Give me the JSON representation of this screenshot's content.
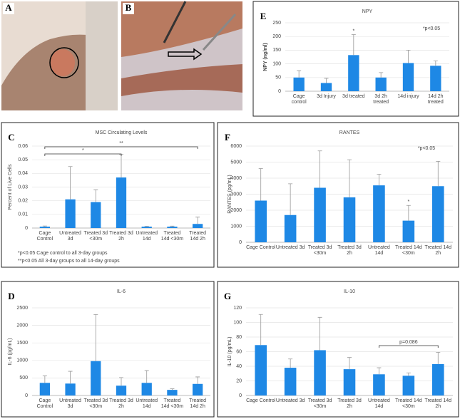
{
  "images": [
    {
      "panel": "A"
    },
    {
      "panel": "B"
    }
  ],
  "chart_data": [
    {
      "type": "bar",
      "panel": "E",
      "title": "NPY",
      "y_label": "NPY (ng/ml)",
      "color": "#1e88e5",
      "categories": [
        "Cage control",
        "3d Injury",
        "3d treated",
        "3d 2h treated",
        "14d injury",
        "14d 2h treated"
      ],
      "values": [
        50,
        30,
        132,
        50,
        103,
        93
      ],
      "errors": [
        25,
        17,
        75,
        18,
        47,
        18
      ],
      "ylim": [
        0,
        250
      ],
      "yticks": [
        0,
        50,
        100,
        150,
        200,
        250
      ],
      "note": "*p<0.05",
      "stars": [
        {
          "category": "3d treated",
          "text": "*"
        }
      ],
      "brackets": []
    },
    {
      "type": "bar",
      "panel": "C",
      "title": "MSC Circulating Levels",
      "y_label": "Percent of Live Cells",
      "color": "#1e88e5",
      "categories": [
        "Cage Control",
        "Untreated 3d",
        "Treated 3d <30m",
        "Treated 3d 2h",
        "Untreated 14d",
        "Treated 14d <30m",
        "Treated 14d 2h"
      ],
      "values": [
        0.001,
        0.021,
        0.019,
        0.037,
        0.001,
        0.001,
        0.003
      ],
      "errors": [
        0.0005,
        0.024,
        0.009,
        0.017,
        0.0003,
        0.0004,
        0.005
      ],
      "ylim": [
        0,
        0.06
      ],
      "yticks": [
        0,
        0.01,
        0.02,
        0.03,
        0.04,
        0.05,
        0.06
      ],
      "footnotes": [
        "*p<0.05 Cage control to all 3-day groups",
        "**p<0.05 All 3-day groups to all 14-day groups"
      ],
      "stars": [],
      "brackets": [
        {
          "from": "Cage Control",
          "to": "Treated 3d 2h",
          "text": "*"
        },
        {
          "from": "Cage Control",
          "to": "Treated 14d 2h",
          "text": "**"
        }
      ]
    },
    {
      "type": "bar",
      "panel": "F",
      "title": "RANTES",
      "y_label": "RANTES (pg/mL)",
      "color": "#1e88e5",
      "categories": [
        "Cage Control",
        "Untreated 3d",
        "Treated 3d <30m",
        "Treated 3d 2h",
        "Untreated 14d",
        "Treated 14d <30m",
        "Treated 14d 2h"
      ],
      "values": [
        2600,
        1700,
        3400,
        2800,
        3550,
        1350,
        3500
      ],
      "errors": [
        2000,
        1950,
        2300,
        2350,
        700,
        950,
        1550
      ],
      "ylim": [
        0,
        6000
      ],
      "yticks": [
        0,
        1000,
        2000,
        3000,
        4000,
        5000,
        6000
      ],
      "note": "*p<0.05",
      "stars": [
        {
          "category": "Treated 14d <30m",
          "text": "*"
        }
      ],
      "brackets": []
    },
    {
      "type": "bar",
      "panel": "D",
      "title": "IL-6",
      "y_label": "IL-6 (pg/mL)",
      "color": "#1e88e5",
      "categories": [
        "Cage Control",
        "Untreated 3d",
        "Treated 3d <30m",
        "Treated 3d 2h",
        "Untreated 14d",
        "Treated 14d <30m",
        "Treated 14d 2h"
      ],
      "values": [
        360,
        340,
        980,
        280,
        360,
        160,
        330
      ],
      "errors": [
        200,
        350,
        1330,
        230,
        350,
        30,
        200
      ],
      "ylim": [
        0,
        2500
      ],
      "yticks": [
        0,
        500,
        1000,
        1500,
        2000,
        2500
      ],
      "stars": [],
      "brackets": []
    },
    {
      "type": "bar",
      "panel": "G",
      "title": "IL-10",
      "y_label": "IL-10 (pg/mL)",
      "color": "#1e88e5",
      "categories": [
        "Cage Control",
        "Untreated 3d",
        "Treated 3d <30m",
        "Treated 3d 2h",
        "Untreated 14d",
        "Treated 14d <30m",
        "Treated 14d 2h"
      ],
      "values": [
        69,
        38,
        62,
        36,
        29,
        27,
        43
      ],
      "errors": [
        42,
        12,
        45,
        16,
        9,
        4,
        16
      ],
      "ylim": [
        0,
        120
      ],
      "yticks": [
        0,
        20,
        40,
        60,
        80,
        100,
        120
      ],
      "stars": [],
      "brackets": [
        {
          "from": "Untreated 14d",
          "to": "Treated 14d 2h",
          "text": "p=0.086"
        }
      ]
    }
  ]
}
